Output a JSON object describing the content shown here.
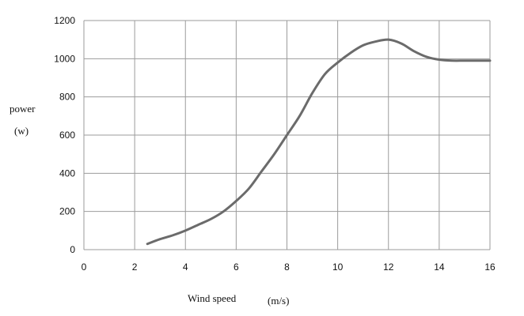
{
  "chart_data": {
    "type": "line",
    "title": "",
    "xlabel": "Wind speed",
    "xunit": "(m/s)",
    "ylabel": "power",
    "yunit": "(w)",
    "xlim": [
      0,
      16
    ],
    "ylim": [
      0,
      1200
    ],
    "xticks": [
      0,
      2,
      4,
      6,
      8,
      10,
      12,
      14,
      16
    ],
    "yticks": [
      0,
      200,
      400,
      600,
      800,
      1000,
      1200
    ],
    "grid": true,
    "legend": "none",
    "series": [
      {
        "color": "#6b6b6b",
        "x": [
          2.5,
          3,
          3.5,
          4,
          4.5,
          5,
          5.5,
          6,
          6.5,
          7,
          7.5,
          8,
          8.5,
          9,
          9.5,
          10,
          10.5,
          11,
          11.5,
          12,
          12.5,
          13,
          13.5,
          14,
          14.5,
          15,
          15.5,
          16
        ],
        "y": [
          30,
          55,
          75,
          100,
          130,
          160,
          200,
          255,
          320,
          410,
          500,
          600,
          700,
          820,
          920,
          980,
          1030,
          1070,
          1090,
          1100,
          1080,
          1040,
          1010,
          995,
          990,
          990,
          990,
          990
        ]
      }
    ]
  }
}
